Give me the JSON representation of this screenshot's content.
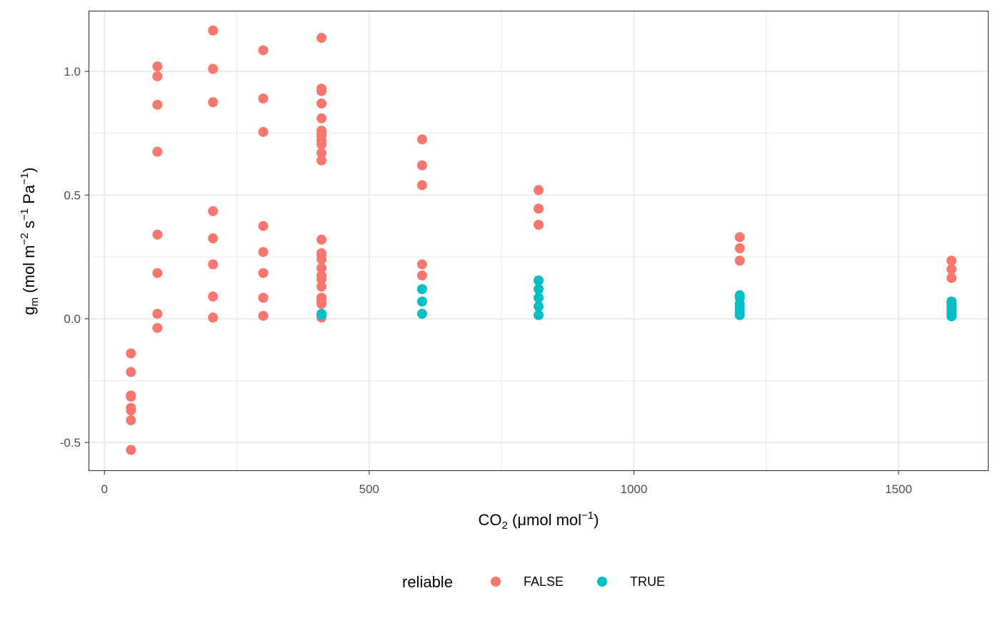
{
  "chart_data": {
    "type": "scatter",
    "title": "",
    "xlabel": {
      "main": "CO",
      "sub": "2",
      "unit_pre": " (",
      "mu": "μ",
      "unit_mid": "mol mol",
      "sup": "−1",
      "unit_post": ")"
    },
    "ylabel": {
      "main": "g",
      "sub": "m",
      "p1": " (mol m",
      "sup1": "−2",
      "p2": " s",
      "sup2": "−1",
      "p3": " Pa",
      "sup3": "−1",
      "p4": ")"
    },
    "xlim": [
      -30,
      1670
    ],
    "ylim": [
      -0.615,
      1.245
    ],
    "x_ticks": [
      0,
      500,
      1000,
      1500
    ],
    "x_tick_labels": [
      "0",
      "500",
      "1000",
      "1500"
    ],
    "y_ticks": [
      -0.5,
      0.0,
      0.5,
      1.0
    ],
    "y_tick_labels": [
      "-0.5",
      "0.0",
      "0.5",
      "1.0"
    ],
    "x_minor": [
      250,
      750,
      1250
    ],
    "y_minor": [
      -0.25,
      0.25,
      0.75
    ],
    "grid": true,
    "legend": {
      "title": "reliable",
      "position": "bottom"
    },
    "series": [
      {
        "name": "FALSE",
        "color": "#F8766D",
        "points": [
          [
            50,
            -0.14
          ],
          [
            50,
            -0.215
          ],
          [
            50,
            -0.31
          ],
          [
            50,
            -0.315
          ],
          [
            50,
            -0.36
          ],
          [
            50,
            -0.37
          ],
          [
            50,
            -0.41
          ],
          [
            50,
            -0.53
          ],
          [
            100,
            1.02
          ],
          [
            100,
            0.98
          ],
          [
            100,
            0.865
          ],
          [
            100,
            0.675
          ],
          [
            100,
            0.34
          ],
          [
            100,
            0.185
          ],
          [
            100,
            0.02
          ],
          [
            100,
            -0.037
          ],
          [
            205,
            1.165
          ],
          [
            205,
            1.01
          ],
          [
            205,
            0.875
          ],
          [
            205,
            0.435
          ],
          [
            205,
            0.325
          ],
          [
            205,
            0.22
          ],
          [
            205,
            0.09
          ],
          [
            205,
            0.005
          ],
          [
            300,
            1.085
          ],
          [
            300,
            0.89
          ],
          [
            300,
            0.755
          ],
          [
            300,
            0.375
          ],
          [
            300,
            0.27
          ],
          [
            300,
            0.185
          ],
          [
            300,
            0.085
          ],
          [
            300,
            0.012
          ],
          [
            410,
            1.135
          ],
          [
            410,
            0.93
          ],
          [
            410,
            0.92
          ],
          [
            410,
            0.87
          ],
          [
            410,
            0.81
          ],
          [
            410,
            0.76
          ],
          [
            410,
            0.75
          ],
          [
            410,
            0.74
          ],
          [
            410,
            0.72
          ],
          [
            410,
            0.705
          ],
          [
            410,
            0.67
          ],
          [
            410,
            0.64
          ],
          [
            410,
            0.32
          ],
          [
            410,
            0.265
          ],
          [
            410,
            0.26
          ],
          [
            410,
            0.24
          ],
          [
            410,
            0.205
          ],
          [
            410,
            0.175
          ],
          [
            410,
            0.16
          ],
          [
            410,
            0.13
          ],
          [
            410,
            0.085
          ],
          [
            410,
            0.075
          ],
          [
            410,
            0.06
          ],
          [
            410,
            0.005
          ],
          [
            600,
            0.725
          ],
          [
            600,
            0.62
          ],
          [
            600,
            0.54
          ],
          [
            600,
            0.22
          ],
          [
            600,
            0.175
          ],
          [
            820,
            0.52
          ],
          [
            820,
            0.445
          ],
          [
            820,
            0.38
          ],
          [
            1200,
            0.33
          ],
          [
            1200,
            0.285
          ],
          [
            1200,
            0.235
          ],
          [
            1600,
            0.235
          ],
          [
            1600,
            0.2
          ],
          [
            1600,
            0.165
          ]
        ]
      },
      {
        "name": "TRUE",
        "color": "#00BFC4",
        "points": [
          [
            410,
            0.02
          ],
          [
            410,
            0.015
          ],
          [
            600,
            0.12
          ],
          [
            600,
            0.07
          ],
          [
            600,
            0.02
          ],
          [
            820,
            0.155
          ],
          [
            820,
            0.12
          ],
          [
            820,
            0.085
          ],
          [
            820,
            0.05
          ],
          [
            820,
            0.015
          ],
          [
            1200,
            0.095
          ],
          [
            1200,
            0.085
          ],
          [
            1200,
            0.06
          ],
          [
            1200,
            0.045
          ],
          [
            1200,
            0.03
          ],
          [
            1200,
            0.015
          ],
          [
            1600,
            0.07
          ],
          [
            1600,
            0.06
          ],
          [
            1600,
            0.045
          ],
          [
            1600,
            0.035
          ],
          [
            1600,
            0.02
          ],
          [
            1600,
            0.01
          ]
        ]
      }
    ]
  }
}
